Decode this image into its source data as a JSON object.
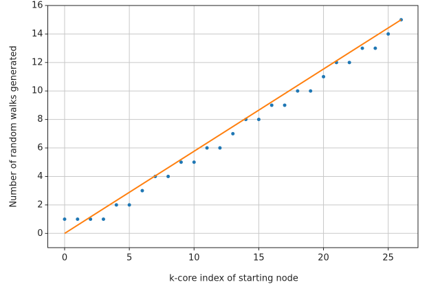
{
  "chart_data": {
    "type": "scatter",
    "x_label": "k-core index of starting node",
    "y_label": "Number of random walks generated",
    "xlim": [
      -1.3,
      27.3
    ],
    "ylim": [
      -1,
      16
    ],
    "xticks": [
      0,
      5,
      10,
      15,
      20,
      25
    ],
    "yticks": [
      0,
      2,
      4,
      6,
      8,
      10,
      12,
      14,
      16
    ],
    "grid": true,
    "series": [
      {
        "mark": "dot",
        "color": "#1f77b4",
        "x": [
          0,
          1,
          2,
          3,
          4,
          5,
          6,
          7,
          8,
          9,
          10,
          11,
          12,
          13,
          14,
          15,
          16,
          17,
          18,
          19,
          20,
          21,
          22,
          23,
          24,
          25,
          26
        ],
        "values": [
          1,
          1,
          1,
          1,
          2,
          2,
          3,
          4,
          4,
          5,
          5,
          6,
          6,
          7,
          8,
          8,
          9,
          9,
          10,
          10,
          11,
          12,
          12,
          13,
          13,
          14,
          15
        ]
      },
      {
        "mark": "line",
        "color": "#ff7f0e",
        "x": [
          0,
          26
        ],
        "values": [
          0,
          15
        ]
      }
    ]
  }
}
